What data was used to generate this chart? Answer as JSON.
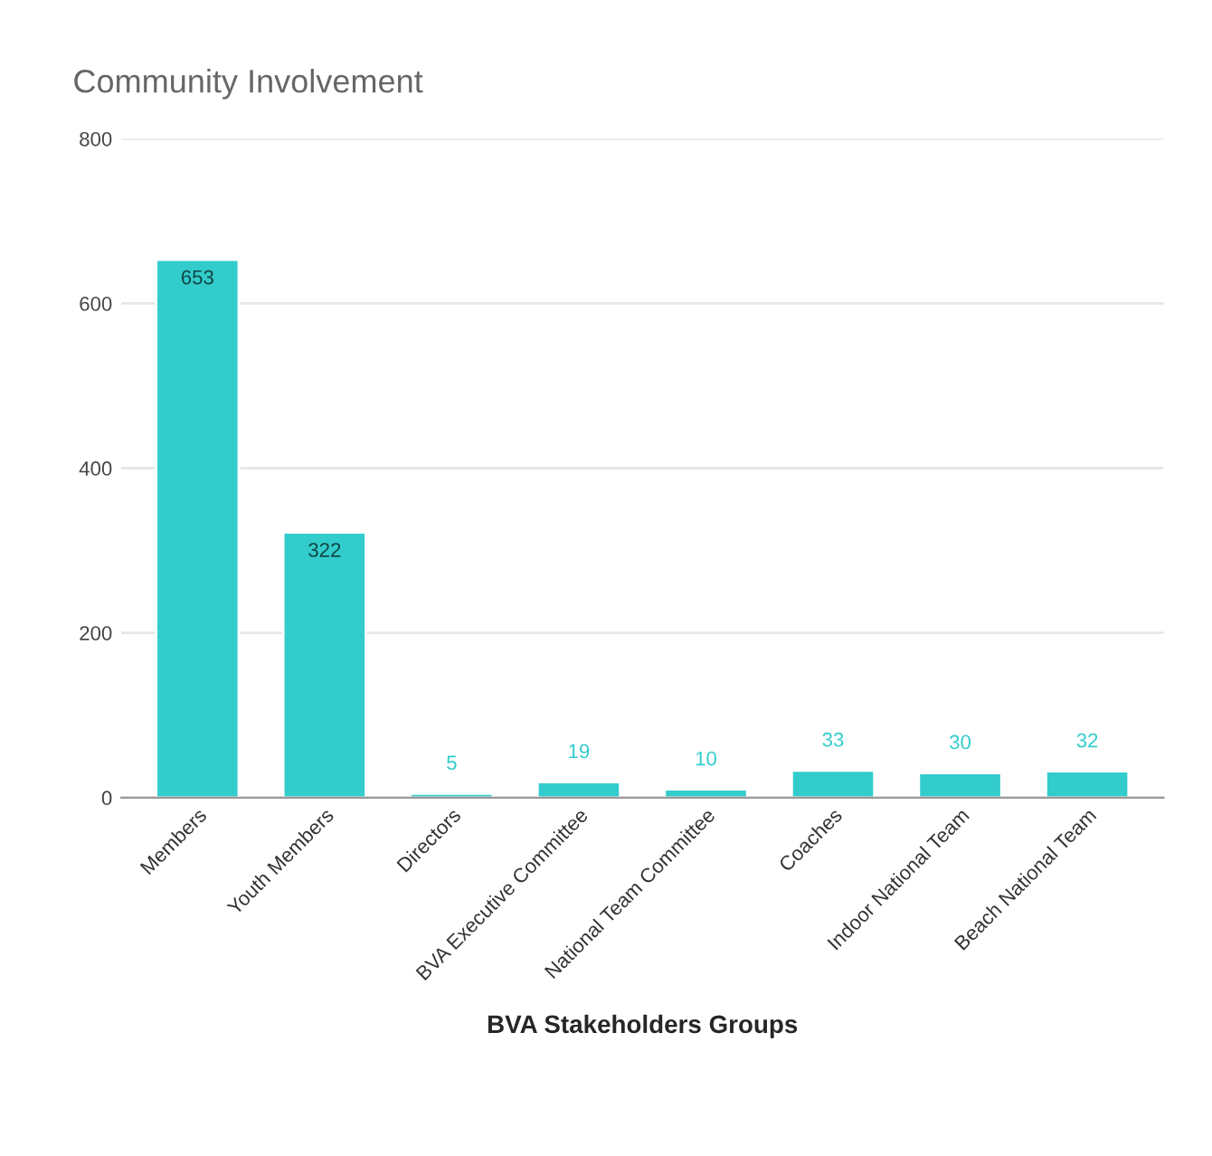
{
  "chart_data": {
    "type": "bar",
    "title": "Community Involvement",
    "xlabel": "BVA Stakeholders Groups",
    "categories": [
      "Members",
      "Youth Members",
      "Directors",
      "BVA Executive Committee",
      "National Team Committee",
      "Coaches",
      "Indoor National Team",
      "Beach National Team"
    ],
    "values": [
      653,
      322,
      5,
      19,
      10,
      33,
      30,
      32
    ],
    "color": "#33cccc",
    "ylim": [
      0,
      800
    ],
    "yticks": [
      0,
      200,
      400,
      600,
      800
    ],
    "grid": "y",
    "data_labels": true
  }
}
